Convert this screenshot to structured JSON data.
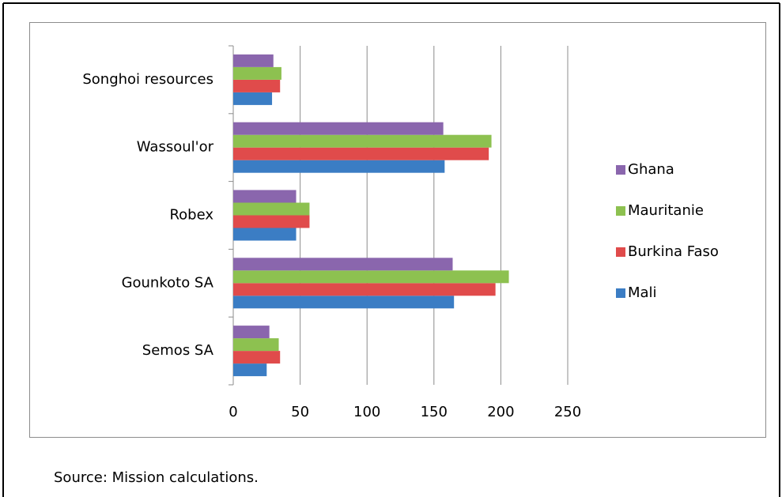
{
  "chart_data": {
    "type": "hbar",
    "categories": [
      "Songhoi resources",
      "Wassoul'or",
      "Robex",
      "Gounkoto SA",
      "Semos SA"
    ],
    "series": [
      {
        "name": "Mali",
        "color": "#3b7dc4",
        "values": [
          29,
          158,
          47,
          165,
          25
        ]
      },
      {
        "name": "Burkina Faso",
        "color": "#e04b4b",
        "values": [
          35,
          191,
          57,
          196,
          35
        ]
      },
      {
        "name": "Mauritanie",
        "color": "#8dc150",
        "values": [
          36,
          193,
          57,
          206,
          34
        ]
      },
      {
        "name": "Ghana",
        "color": "#8a66ad",
        "values": [
          30,
          157,
          47,
          164,
          27
        ]
      }
    ],
    "xlim": [
      0,
      250
    ],
    "xticks": [
      0,
      50,
      100,
      150,
      200,
      250
    ],
    "grid": true,
    "legend": "right",
    "source": "Source: Mission calculations."
  }
}
